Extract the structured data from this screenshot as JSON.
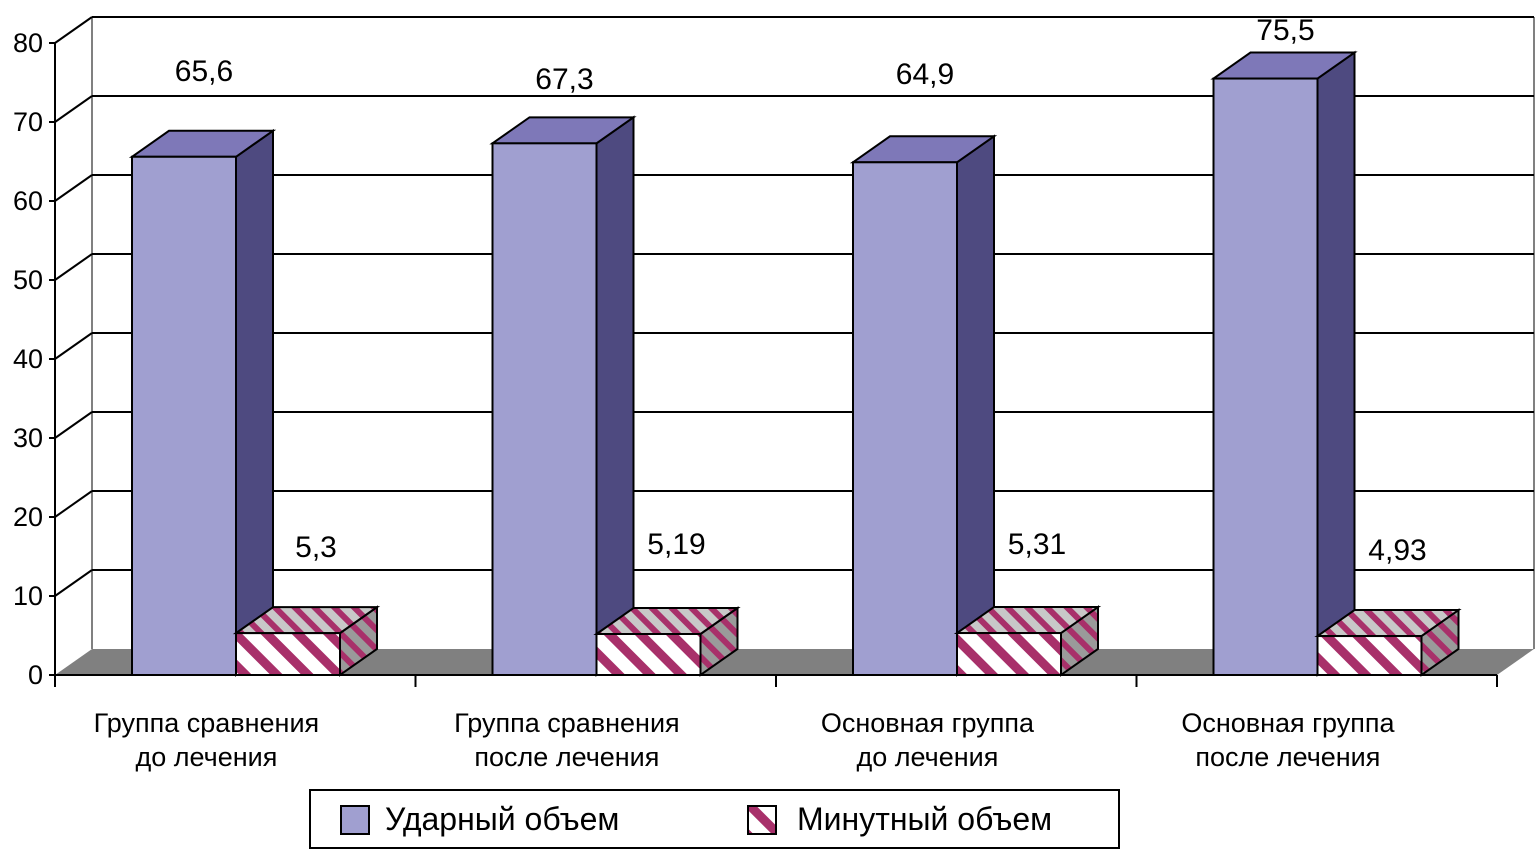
{
  "chart_data": {
    "type": "bar",
    "variant": "3d-clustered",
    "ylim": [
      0,
      80
    ],
    "yticks": [
      "0",
      "10",
      "20",
      "30",
      "40",
      "50",
      "60",
      "70",
      "80"
    ],
    "grid": true,
    "legend_position": "bottom",
    "categories": [
      [
        "Группа сравнения",
        "до лечения"
      ],
      [
        "Группа сравнения",
        "после лечения"
      ],
      [
        "Основная группа",
        "до лечения"
      ],
      [
        "Основная группа",
        "после лечения"
      ]
    ],
    "series": [
      {
        "name": "Ударный объем",
        "values": [
          65.6,
          67.3,
          64.9,
          75.5
        ],
        "labels": [
          "65,6",
          "67,3",
          "64,9",
          "75,5"
        ],
        "colors": {
          "front": "#a09fd0",
          "side": "#4e4a80",
          "top": "#7e78b8"
        }
      },
      {
        "name": "Минутный объем",
        "values": [
          5.3,
          5.19,
          5.31,
          4.93
        ],
        "labels": [
          "5,3",
          "5,19",
          "5,31",
          "4,93"
        ],
        "colors": {
          "stripe": "#a8306a",
          "front": "#ffffff",
          "side": "#9a9a9a",
          "top": "#c8c8c8"
        }
      }
    ],
    "colors": {
      "floor": "#808080",
      "grid": "#000000",
      "wall_edge": "#808080"
    }
  }
}
